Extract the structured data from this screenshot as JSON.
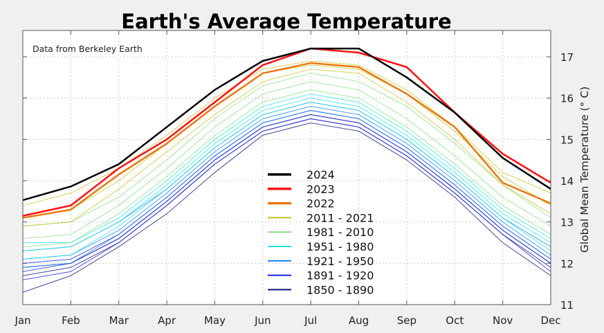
{
  "chart_data": {
    "type": "line",
    "title": "Earth's Average Temperature",
    "annotation": "Data from Berkeley Earth",
    "ylabel": "Global Mean Temperature (° C)",
    "xlabel": "",
    "categories": [
      "Jan",
      "Feb",
      "Mar",
      "Apr",
      "May",
      "Jun",
      "Jul",
      "Aug",
      "Sep",
      "Oct",
      "Nov",
      "Dec"
    ],
    "ylim": [
      11,
      17.6
    ],
    "yticks": [
      11,
      12,
      13,
      14,
      15,
      16,
      17
    ],
    "y_axis_side": "right",
    "grid": true,
    "legend_position": "center-bottom",
    "series": [
      {
        "name": "1850 - 1890",
        "color": "#0a0a78",
        "group": true,
        "lines": [
          [
            11.3,
            11.7,
            12.4,
            13.2,
            14.2,
            15.1,
            15.4,
            15.2,
            14.5,
            13.6,
            12.5,
            11.7
          ],
          [
            11.7,
            11.9,
            12.5,
            13.4,
            14.4,
            15.2,
            15.5,
            15.3,
            14.6,
            13.7,
            12.7,
            11.9
          ],
          [
            11.9,
            12.0,
            12.6,
            13.5,
            14.5,
            15.3,
            15.6,
            15.4,
            14.7,
            13.8,
            12.8,
            12.0
          ]
        ]
      },
      {
        "name": "1891 - 1920",
        "color": "#1020e0",
        "group": true,
        "lines": [
          [
            11.6,
            11.8,
            12.5,
            13.4,
            14.4,
            15.2,
            15.5,
            15.3,
            14.6,
            13.7,
            12.7,
            11.8
          ],
          [
            11.8,
            12.0,
            12.6,
            13.5,
            14.5,
            15.3,
            15.6,
            15.4,
            14.7,
            13.8,
            12.8,
            12.0
          ],
          [
            12.0,
            12.1,
            12.7,
            13.6,
            14.6,
            15.4,
            15.7,
            15.5,
            14.8,
            13.9,
            12.9,
            12.1
          ]
        ]
      },
      {
        "name": "1921 - 1950",
        "color": "#1080f0",
        "group": true,
        "lines": [
          [
            11.9,
            12.0,
            12.7,
            13.6,
            14.6,
            15.4,
            15.7,
            15.5,
            14.8,
            13.9,
            12.9,
            12.1
          ],
          [
            12.1,
            12.2,
            12.8,
            13.7,
            14.7,
            15.5,
            15.8,
            15.6,
            14.9,
            14.0,
            13.0,
            12.2
          ],
          [
            12.3,
            12.4,
            13.0,
            13.8,
            14.8,
            15.6,
            15.9,
            15.7,
            15.0,
            14.1,
            13.1,
            12.4
          ]
        ]
      },
      {
        "name": "1951 - 1980",
        "color": "#20e0e8",
        "group": true,
        "lines": [
          [
            12.1,
            12.2,
            12.9,
            13.8,
            14.8,
            15.6,
            15.9,
            15.7,
            15.0,
            14.1,
            13.1,
            12.3
          ],
          [
            12.3,
            12.4,
            13.0,
            13.9,
            14.9,
            15.7,
            16.0,
            15.8,
            15.1,
            14.2,
            13.2,
            12.5
          ],
          [
            12.5,
            12.5,
            13.1,
            14.0,
            15.0,
            15.8,
            16.1,
            15.9,
            15.2,
            14.3,
            13.3,
            12.6
          ]
        ]
      },
      {
        "name": "1981 - 2010",
        "color": "#80e080",
        "group": true,
        "lines": [
          [
            12.4,
            12.5,
            13.2,
            14.1,
            15.1,
            15.9,
            16.2,
            16.0,
            15.3,
            14.4,
            13.4,
            12.7
          ],
          [
            12.6,
            12.7,
            13.4,
            14.3,
            15.3,
            16.1,
            16.4,
            16.2,
            15.5,
            14.6,
            13.6,
            12.9
          ],
          [
            12.9,
            13.0,
            13.6,
            14.5,
            15.5,
            16.3,
            16.6,
            16.4,
            15.8,
            14.9,
            13.9,
            13.1
          ]
        ]
      },
      {
        "name": "2011 - 2021",
        "color": "#c8c020",
        "group": true,
        "lines": [
          [
            12.9,
            13.0,
            13.8,
            14.7,
            15.6,
            16.4,
            16.7,
            16.6,
            15.9,
            15.0,
            13.9,
            13.2
          ],
          [
            13.1,
            13.3,
            14.0,
            14.9,
            15.8,
            16.6,
            16.8,
            16.7,
            16.1,
            15.2,
            14.1,
            13.4
          ],
          [
            13.4,
            13.7,
            14.3,
            15.1,
            16.0,
            16.7,
            16.9,
            16.8,
            16.2,
            15.3,
            14.2,
            13.7
          ]
        ]
      },
      {
        "name": "2022",
        "color": "#e87810",
        "values": [
          13.1,
          13.3,
          14.15,
          14.9,
          15.8,
          16.6,
          16.85,
          16.75,
          16.1,
          15.3,
          13.95,
          13.45
        ]
      },
      {
        "name": "2023",
        "color": "#ff1010",
        "values": [
          13.15,
          13.4,
          14.3,
          15.0,
          15.9,
          16.8,
          17.2,
          17.1,
          16.75,
          15.65,
          14.65,
          13.95
        ]
      },
      {
        "name": "2024",
        "color": "#000000",
        "values": [
          13.53,
          13.86,
          14.4,
          15.3,
          16.2,
          16.9,
          17.2,
          17.2,
          16.5,
          15.65,
          14.55,
          13.8
        ]
      }
    ],
    "legend": [
      "2024",
      "2023",
      "2022",
      "2011 - 2021",
      "1981 - 2010",
      "1951 - 1980",
      "1921 - 1950",
      "1891 - 1920",
      "1850 - 1890"
    ]
  }
}
